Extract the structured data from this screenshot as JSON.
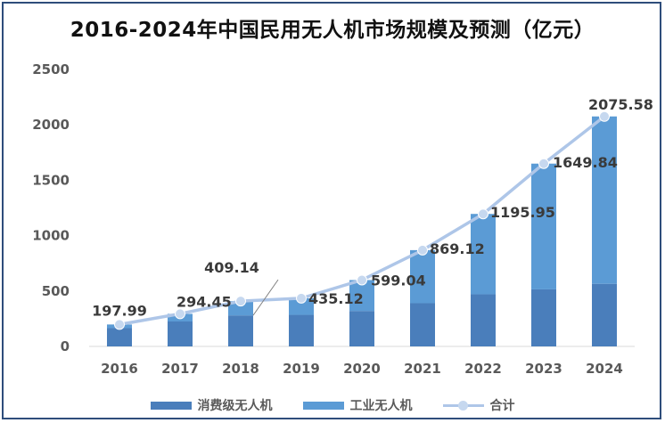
{
  "title": "2016-2024年中国民用无人机市场规模及预测（亿元）",
  "chart_data": {
    "type": "bar",
    "stacked": true,
    "categories": [
      "2016",
      "2017",
      "2018",
      "2019",
      "2020",
      "2021",
      "2022",
      "2023",
      "2024"
    ],
    "ylim": [
      0,
      2500
    ],
    "yticks": [
      0,
      500,
      1000,
      1500,
      2000,
      2500
    ],
    "grid": false,
    "legend_placement": "bottom",
    "series": [
      {
        "name": "消费级无人机",
        "type": "bar",
        "color": "#4a7ebb",
        "values": [
          165,
          225,
          280,
          285,
          320,
          390,
          470,
          515,
          565
        ]
      },
      {
        "name": "工业无人机",
        "type": "bar",
        "color": "#5b9bd5",
        "values": [
          33,
          69,
          129,
          150,
          279,
          479,
          726,
          1135,
          1511
        ]
      },
      {
        "name": "合计",
        "type": "line",
        "color": "#aec6e8",
        "values": [
          197.99,
          294.45,
          409.14,
          435.12,
          599.04,
          869.12,
          1195.95,
          1649.84,
          2075.58
        ]
      }
    ],
    "data_labels": [
      "197.99",
      "294.45",
      "409.14",
      "435.12",
      "599.04",
      "869.12",
      "1195.95",
      "1649.84",
      "2075.58"
    ]
  }
}
